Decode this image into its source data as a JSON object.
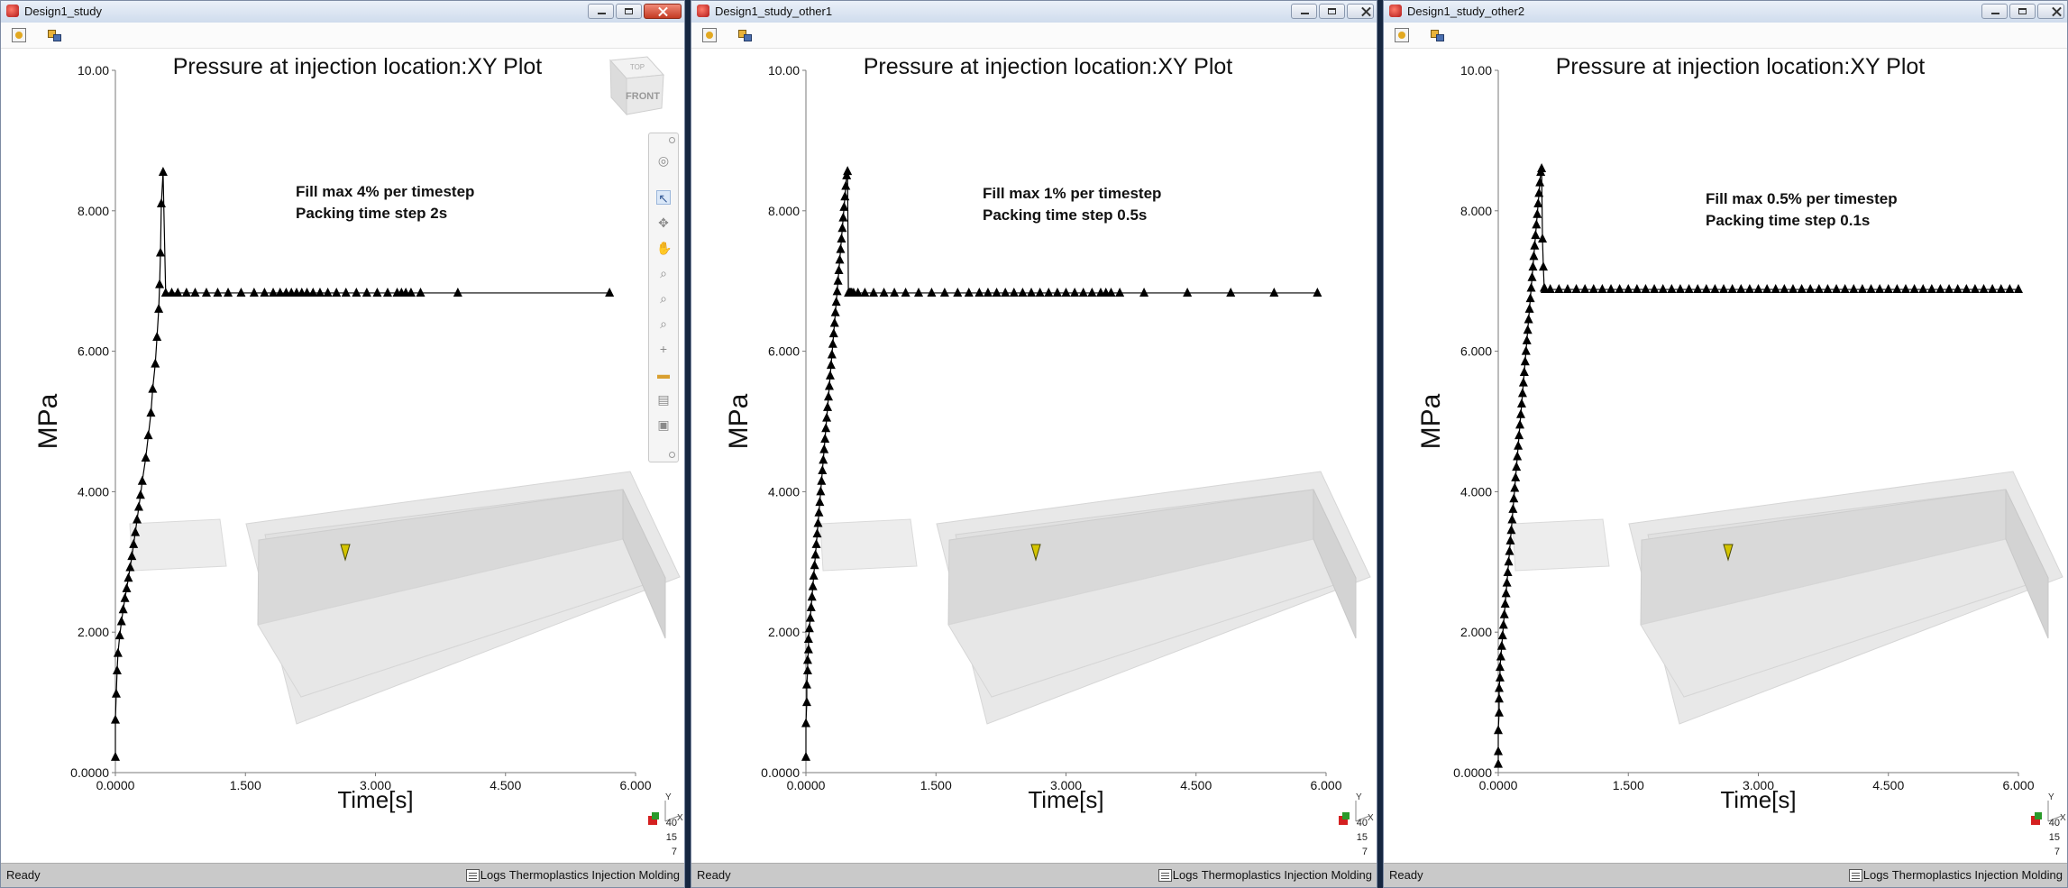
{
  "windows": [
    {
      "title": "Design1_study",
      "close_active": true,
      "chart_title": "Pressure at injection location:XY Plot",
      "annotation": [
        "Fill max 4% per timestep",
        "Packing time step 2s"
      ],
      "view_cube": {
        "top": "TOP",
        "front": "FRONT"
      },
      "triad": {
        "x_label": "X",
        "y_label": "Y",
        "scale": [
          "40",
          "15",
          "7"
        ]
      },
      "status": {
        "ready": "Ready",
        "logs": "Logs",
        "module": "Thermoplastics Injection Molding"
      }
    },
    {
      "title": "Design1_study_other1",
      "close_active": false,
      "chart_title": "Pressure at injection location:XY Plot",
      "annotation": [
        "Fill max 1% per timestep",
        "Packing time step 0.5s"
      ],
      "triad": {
        "x_label": "X",
        "y_label": "Y",
        "scale": [
          "40",
          "15",
          "7"
        ]
      },
      "status": {
        "ready": "Ready",
        "logs": "Logs",
        "module": "Thermoplastics Injection Molding"
      }
    },
    {
      "title": "Design1_study_other2",
      "close_active": false,
      "chart_title": "Pressure at injection location:XY Plot",
      "annotation": [
        "Fill max 0.5% per timestep",
        "Packing time step 0.1s"
      ],
      "triad": {
        "x_label": "X",
        "y_label": "Y",
        "scale": [
          "40",
          "15",
          "7"
        ]
      },
      "status": {
        "ready": "Ready",
        "logs": "Logs",
        "module": "Thermoplastics Injection Molding"
      }
    }
  ],
  "nav_toolbar": {
    "icons": [
      "orbit-icon",
      "select-arrow-icon",
      "rotate-icon",
      "pan-hand-icon",
      "zoom-box-icon",
      "zoom-icon",
      "zoom-fit-icon",
      "crosshair-icon",
      "measure-icon",
      "print-icon",
      "save-view-icon"
    ]
  },
  "colors": {
    "accent": "#3a5f9a",
    "series": "#000000",
    "status_bg": "#c9c9c9"
  },
  "chart_data": [
    {
      "type": "line",
      "title": "Pressure at injection location:XY Plot",
      "xlabel": "Time[s]",
      "ylabel": "MPa",
      "xlim": [
        0,
        6
      ],
      "ylim": [
        0,
        10
      ],
      "x_ticks": [
        "0.0000",
        "1.500",
        "3.000",
        "4.500",
        "6.000"
      ],
      "y_ticks": [
        "0.0000",
        "2.000",
        "4.000",
        "6.000",
        "8.000",
        "10.00"
      ],
      "marker": "triangle",
      "x": [
        0.0,
        0.0,
        0.01,
        0.02,
        0.03,
        0.05,
        0.07,
        0.09,
        0.11,
        0.13,
        0.15,
        0.17,
        0.19,
        0.21,
        0.23,
        0.25,
        0.27,
        0.29,
        0.31,
        0.35,
        0.38,
        0.41,
        0.43,
        0.46,
        0.48,
        0.5,
        0.51,
        0.52,
        0.53,
        0.55,
        0.58,
        0.65,
        0.72,
        0.82,
        0.92,
        1.05,
        1.18,
        1.3,
        1.45,
        1.6,
        1.72,
        1.82,
        1.9,
        1.97,
        2.03,
        2.09,
        2.15,
        2.21,
        2.28,
        2.36,
        2.45,
        2.55,
        2.66,
        2.78,
        2.9,
        3.02,
        3.14,
        3.25,
        3.3,
        3.35,
        3.41,
        3.52,
        3.95,
        5.7
      ],
      "y": [
        0.22,
        0.75,
        1.12,
        1.45,
        1.7,
        1.95,
        2.15,
        2.32,
        2.48,
        2.62,
        2.77,
        2.92,
        3.08,
        3.25,
        3.42,
        3.6,
        3.78,
        3.95,
        4.15,
        4.48,
        4.8,
        5.12,
        5.46,
        5.82,
        6.2,
        6.6,
        6.95,
        7.4,
        8.1,
        8.55,
        6.83,
        6.83,
        6.83,
        6.83,
        6.83,
        6.83,
        6.83,
        6.83,
        6.83,
        6.83,
        6.83,
        6.83,
        6.83,
        6.83,
        6.83,
        6.83,
        6.83,
        6.83,
        6.83,
        6.83,
        6.83,
        6.83,
        6.83,
        6.83,
        6.83,
        6.83,
        6.83,
        6.83,
        6.83,
        6.83,
        6.83,
        6.83,
        6.83,
        6.83
      ]
    },
    {
      "type": "line",
      "title": "Pressure at injection location:XY Plot",
      "xlabel": "Time[s]",
      "ylabel": "MPa",
      "xlim": [
        0,
        6
      ],
      "ylim": [
        0,
        10
      ],
      "x_ticks": [
        "0.0000",
        "1.500",
        "3.000",
        "4.500",
        "6.000"
      ],
      "y_ticks": [
        "0.0000",
        "2.000",
        "4.000",
        "6.000",
        "8.000",
        "10.00"
      ],
      "marker": "triangle",
      "x": [
        0.0,
        0.0,
        0.01,
        0.01,
        0.02,
        0.02,
        0.03,
        0.03,
        0.04,
        0.05,
        0.06,
        0.07,
        0.08,
        0.09,
        0.1,
        0.11,
        0.12,
        0.13,
        0.14,
        0.15,
        0.16,
        0.17,
        0.18,
        0.19,
        0.2,
        0.21,
        0.22,
        0.23,
        0.24,
        0.25,
        0.26,
        0.27,
        0.28,
        0.29,
        0.3,
        0.31,
        0.32,
        0.33,
        0.34,
        0.35,
        0.36,
        0.37,
        0.38,
        0.39,
        0.4,
        0.41,
        0.42,
        0.43,
        0.44,
        0.45,
        0.46,
        0.47,
        0.48,
        0.49,
        0.5,
        0.51,
        0.52,
        0.53,
        0.55,
        0.6,
        0.68,
        0.78,
        0.9,
        1.02,
        1.15,
        1.3,
        1.45,
        1.6,
        1.75,
        1.88,
        2.0,
        2.1,
        2.2,
        2.3,
        2.4,
        2.5,
        2.6,
        2.7,
        2.8,
        2.9,
        3.0,
        3.1,
        3.2,
        3.3,
        3.4,
        3.46,
        3.52,
        3.62,
        3.9,
        4.4,
        4.9,
        5.4,
        5.9
      ],
      "y": [
        0.22,
        0.7,
        1.0,
        1.25,
        1.45,
        1.6,
        1.75,
        1.9,
        2.05,
        2.2,
        2.35,
        2.5,
        2.65,
        2.8,
        2.95,
        3.1,
        3.25,
        3.4,
        3.55,
        3.7,
        3.85,
        4.0,
        4.15,
        4.3,
        4.45,
        4.6,
        4.75,
        4.9,
        5.05,
        5.2,
        5.35,
        5.5,
        5.65,
        5.8,
        5.95,
        6.1,
        6.25,
        6.4,
        6.55,
        6.7,
        6.85,
        7.0,
        7.15,
        7.3,
        7.45,
        7.6,
        7.75,
        7.9,
        8.05,
        8.2,
        8.35,
        8.5,
        8.56,
        6.83,
        6.83,
        6.83,
        6.83,
        6.83,
        6.83,
        6.83,
        6.83,
        6.83,
        6.83,
        6.83,
        6.83,
        6.83,
        6.83,
        6.83,
        6.83,
        6.83,
        6.83,
        6.83,
        6.83,
        6.83,
        6.83,
        6.83,
        6.83,
        6.83,
        6.83,
        6.83,
        6.83,
        6.83,
        6.83,
        6.83,
        6.83,
        6.83,
        6.83,
        6.83,
        6.83,
        6.83,
        6.83,
        6.83,
        6.83
      ]
    },
    {
      "type": "line",
      "title": "Pressure at injection location:XY Plot",
      "xlabel": "Time[s]",
      "ylabel": "MPa",
      "xlim": [
        0,
        6
      ],
      "ylim": [
        0,
        10
      ],
      "x_ticks": [
        "0.0000",
        "1.500",
        "3.000",
        "4.500",
        "6.000"
      ],
      "y_ticks": [
        "0.0000",
        "2.000",
        "4.000",
        "6.000",
        "8.000",
        "10.00"
      ],
      "marker": "triangle",
      "x": [
        0.0,
        0.0,
        0.0,
        0.01,
        0.01,
        0.01,
        0.02,
        0.02,
        0.03,
        0.04,
        0.05,
        0.06,
        0.07,
        0.08,
        0.09,
        0.1,
        0.11,
        0.12,
        0.13,
        0.14,
        0.15,
        0.16,
        0.17,
        0.18,
        0.19,
        0.2,
        0.21,
        0.22,
        0.23,
        0.24,
        0.25,
        0.26,
        0.27,
        0.28,
        0.29,
        0.3,
        0.31,
        0.32,
        0.33,
        0.34,
        0.35,
        0.36,
        0.37,
        0.38,
        0.39,
        0.4,
        0.41,
        0.42,
        0.43,
        0.44,
        0.45,
        0.46,
        0.47,
        0.48,
        0.49,
        0.5,
        0.51,
        0.52,
        0.53,
        0.54,
        0.6,
        0.7,
        0.8,
        0.9,
        1.0,
        1.1,
        1.2,
        1.3,
        1.4,
        1.5,
        1.6,
        1.7,
        1.8,
        1.9,
        2.0,
        2.1,
        2.2,
        2.3,
        2.4,
        2.5,
        2.6,
        2.7,
        2.8,
        2.9,
        3.0,
        3.1,
        3.2,
        3.3,
        3.4,
        3.5,
        3.6,
        3.7,
        3.8,
        3.9,
        4.0,
        4.1,
        4.2,
        4.3,
        4.4,
        4.5,
        4.6,
        4.7,
        4.8,
        4.9,
        5.0,
        5.1,
        5.2,
        5.3,
        5.4,
        5.5,
        5.6,
        5.7,
        5.8,
        5.9,
        6.0
      ],
      "y": [
        0.12,
        0.3,
        0.6,
        0.85,
        1.05,
        1.2,
        1.35,
        1.5,
        1.65,
        1.8,
        1.95,
        2.1,
        2.25,
        2.4,
        2.55,
        2.7,
        2.85,
        3.0,
        3.15,
        3.3,
        3.45,
        3.6,
        3.75,
        3.9,
        4.05,
        4.2,
        4.35,
        4.5,
        4.65,
        4.8,
        4.95,
        5.1,
        5.25,
        5.4,
        5.55,
        5.7,
        5.85,
        6.0,
        6.15,
        6.3,
        6.45,
        6.6,
        6.75,
        6.9,
        7.05,
        7.2,
        7.35,
        7.5,
        7.65,
        7.8,
        7.95,
        8.1,
        8.25,
        8.4,
        8.55,
        8.6,
        7.6,
        7.2,
        6.9,
        6.88,
        6.88,
        6.88,
        6.88,
        6.88,
        6.88,
        6.88,
        6.88,
        6.88,
        6.88,
        6.88,
        6.88,
        6.88,
        6.88,
        6.88,
        6.88,
        6.88,
        6.88,
        6.88,
        6.88,
        6.88,
        6.88,
        6.88,
        6.88,
        6.88,
        6.88,
        6.88,
        6.88,
        6.88,
        6.88,
        6.88,
        6.88,
        6.88,
        6.88,
        6.88,
        6.88,
        6.88,
        6.88,
        6.88,
        6.88,
        6.88,
        6.88,
        6.88,
        6.88,
        6.88,
        6.88,
        6.88,
        6.88,
        6.88,
        6.88,
        6.88,
        6.88,
        6.88,
        6.88,
        6.88,
        6.88
      ]
    }
  ]
}
